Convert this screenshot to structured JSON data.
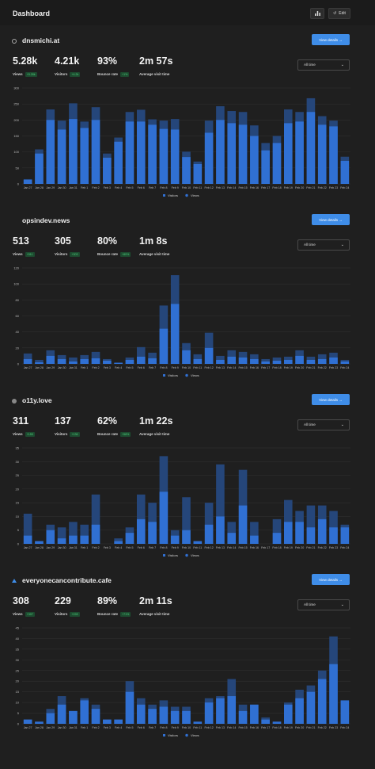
{
  "header": {
    "title": "Dashboard",
    "edit_label": "Edit"
  },
  "colors": {
    "views": "#25467a",
    "visitors": "#3070d3",
    "button": "#3f8de8",
    "badge_bg": "#1d4a2f",
    "badge_text": "#4fd07d"
  },
  "labels": {
    "view_details": "View details →",
    "range": "All time",
    "legend_visitors": "Visitors",
    "legend_views": "Views"
  },
  "sites": [
    {
      "name": "dnsmichi.at",
      "dot": "outline",
      "stats": [
        {
          "value": "5.28k",
          "label": "Views",
          "badge": "+5.28k"
        },
        {
          "value": "4.21k",
          "label": "Visitors",
          "badge": "+4.2k"
        },
        {
          "value": "93%",
          "label": "Bounce rate",
          "badge": "+1%"
        },
        {
          "value": "2m 57s",
          "label": "Average visit time",
          "badge": ""
        }
      ],
      "chart_data": {
        "type": "bar",
        "categories": [
          "Jan 27",
          "Jan 28",
          "Jan 29",
          "Jan 30",
          "Jan 31",
          "Feb 1",
          "Feb 2",
          "Feb 3",
          "Feb 4",
          "Feb 5",
          "Feb 6",
          "Feb 7",
          "Feb 8",
          "Feb 9",
          "Feb 10",
          "Feb 11",
          "Feb 12",
          "Feb 13",
          "Feb 14",
          "Feb 15",
          "Feb 16",
          "Feb 17",
          "Feb 18",
          "Feb 19",
          "Feb 20",
          "Feb 21",
          "Feb 22",
          "Feb 23",
          "Feb 24"
        ],
        "yticks": [
          0,
          50,
          100,
          150,
          200,
          250,
          300
        ],
        "ylim": [
          0,
          300
        ],
        "series": [
          {
            "name": "Views",
            "values": [
              15,
              108,
              233,
              198,
              252,
              195,
              240,
              95,
              145,
              225,
              232,
              202,
              198,
              203,
              101,
              70,
              198,
              243,
              228,
              225,
              183,
              128,
              150,
              233,
              225,
              268,
              212,
              198,
              85
            ]
          },
          {
            "name": "Visitors",
            "values": [
              13,
              95,
              200,
              170,
              203,
              175,
              200,
              82,
              132,
              195,
              195,
              185,
              172,
              170,
              84,
              62,
              160,
              200,
              190,
              185,
              150,
              105,
              128,
              190,
              195,
              225,
              185,
              180,
              72
            ]
          }
        ]
      }
    },
    {
      "name": "opsindev.news",
      "dot": "none",
      "stats": [
        {
          "value": "513",
          "label": "Views",
          "badge": "+511"
        },
        {
          "value": "305",
          "label": "Visitors",
          "badge": "+303"
        },
        {
          "value": "80%",
          "label": "Bounce rate",
          "badge": "+80%"
        },
        {
          "value": "1m 8s",
          "label": "Average visit time",
          "badge": ""
        }
      ],
      "chart_data": {
        "type": "bar",
        "categories": [
          "Jan 27",
          "Jan 28",
          "Jan 29",
          "Jan 30",
          "Jan 31",
          "Feb 1",
          "Feb 2",
          "Feb 3",
          "Feb 4",
          "Feb 5",
          "Feb 6",
          "Feb 7",
          "Feb 8",
          "Feb 9",
          "Feb 10",
          "Feb 11",
          "Feb 12",
          "Feb 13",
          "Feb 14",
          "Feb 15",
          "Feb 16",
          "Feb 17",
          "Feb 18",
          "Feb 19",
          "Feb 20",
          "Feb 21",
          "Feb 22",
          "Feb 23",
          "Feb 24"
        ],
        "yticks": [
          0,
          20,
          40,
          60,
          80,
          100,
          120
        ],
        "ylim": [
          0,
          120
        ],
        "series": [
          {
            "name": "Views",
            "values": [
              13,
              5,
              17,
              11,
              8,
              11,
              15,
              6,
              2,
              8,
              21,
              14,
              73,
              111,
              26,
              12,
              39,
              10,
              17,
              15,
              12,
              6,
              8,
              9,
              17,
              9,
              12,
              14,
              5
            ]
          },
          {
            "name": "Visitors",
            "values": [
              6,
              2,
              10,
              6,
              3,
              6,
              7,
              4,
              1,
              5,
              9,
              7,
              44,
              75,
              17,
              6,
              20,
              5,
              9,
              8,
              6,
              3,
              4,
              5,
              10,
              5,
              6,
              8,
              3
            ]
          }
        ]
      }
    },
    {
      "name": "o11y.love",
      "dot": "filled",
      "stats": [
        {
          "value": "311",
          "label": "Views",
          "badge": "+155"
        },
        {
          "value": "137",
          "label": "Visitors",
          "badge": "+136"
        },
        {
          "value": "62%",
          "label": "Bounce rate",
          "badge": "+58%"
        },
        {
          "value": "1m 22s",
          "label": "Average visit time",
          "badge": ""
        }
      ],
      "chart_data": {
        "type": "bar",
        "categories": [
          "Jan 27",
          "Jan 28",
          "Jan 29",
          "Jan 30",
          "Jan 31",
          "Feb 1",
          "Feb 2",
          "Feb 3",
          "Feb 4",
          "Feb 5",
          "Feb 6",
          "Feb 7",
          "Feb 8",
          "Feb 9",
          "Feb 10",
          "Feb 11",
          "Feb 12",
          "Feb 13",
          "Feb 14",
          "Feb 15",
          "Feb 16",
          "Feb 17",
          "Feb 18",
          "Feb 19",
          "Feb 20",
          "Feb 21",
          "Feb 22",
          "Feb 23",
          "Feb 24"
        ],
        "yticks": [
          0,
          5,
          10,
          15,
          20,
          25,
          30,
          35
        ],
        "ylim": [
          0,
          35
        ],
        "series": [
          {
            "name": "Views",
            "values": [
              11,
              1,
              7,
              6,
              8,
              7,
              18,
              0,
              2,
              6,
              18,
              15,
              32,
              5,
              17,
              1,
              15,
              29,
              8,
              27,
              8,
              0,
              9,
              16,
              12,
              14,
              14,
              12,
              7
            ]
          },
          {
            "name": "Visitors",
            "values": [
              3,
              1,
              5,
              2,
              3,
              3,
              7,
              0,
              1,
              4,
              9,
              8,
              19,
              3,
              5,
              1,
              7,
              10,
              4,
              14,
              3,
              0,
              4,
              8,
              8,
              6,
              9,
              6,
              6
            ]
          }
        ]
      }
    },
    {
      "name": "everyonecancontribute.cafe",
      "dot": "triangle",
      "stats": [
        {
          "value": "308",
          "label": "Views",
          "badge": "+307"
        },
        {
          "value": "229",
          "label": "Visitors",
          "badge": "+228"
        },
        {
          "value": "89%",
          "label": "Bounce rate",
          "badge": "+71%"
        },
        {
          "value": "2m 11s",
          "label": "Average visit time",
          "badge": ""
        }
      ],
      "chart_data": {
        "type": "bar",
        "categories": [
          "Jan 27",
          "Jan 28",
          "Jan 29",
          "Jan 30",
          "Jan 31",
          "Feb 1",
          "Feb 2",
          "Feb 3",
          "Feb 4",
          "Feb 5",
          "Feb 6",
          "Feb 7",
          "Feb 8",
          "Feb 9",
          "Feb 10",
          "Feb 11",
          "Feb 12",
          "Feb 13",
          "Feb 14",
          "Feb 15",
          "Feb 16",
          "Feb 17",
          "Feb 18",
          "Feb 19",
          "Feb 20",
          "Feb 21",
          "Feb 22",
          "Feb 23",
          "Feb 24"
        ],
        "yticks": [
          0,
          5,
          10,
          15,
          20,
          25,
          30,
          35,
          40,
          45
        ],
        "ylim": [
          0,
          45
        ],
        "series": [
          {
            "name": "Views",
            "values": [
              2,
              1,
              7,
              13,
              6,
              12,
              9,
              2,
              2,
              20,
              12,
              9,
              11,
              8,
              8,
              1,
              12,
              13,
              21,
              9,
              9,
              3,
              1,
              10,
              16,
              18,
              25,
              41,
              11
            ]
          },
          {
            "name": "Visitors",
            "values": [
              2,
              1,
              5,
              9,
              6,
              11,
              7,
              2,
              2,
              15,
              9,
              7,
              8,
              6,
              6,
              1,
              10,
              12,
              13,
              6,
              9,
              2,
              1,
              9,
              12,
              15,
              21,
              28,
              11
            ]
          }
        ]
      }
    }
  ]
}
